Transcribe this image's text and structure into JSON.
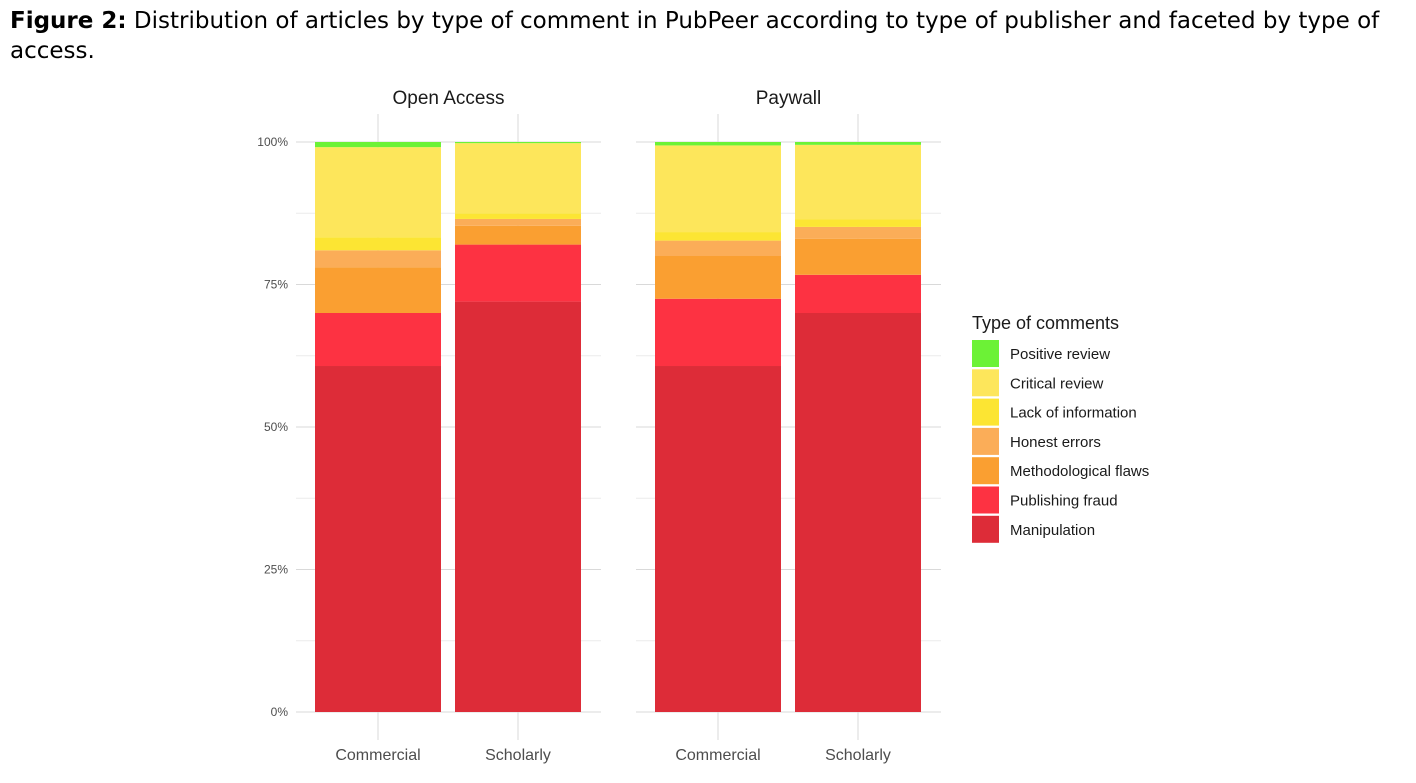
{
  "caption": {
    "label": "Figure 2:",
    "text": "Distribution of articles by type of comment in PubPeer according to type of publisher and faceted by type of access."
  },
  "chart_data": {
    "type": "bar",
    "stacked": true,
    "normalized": true,
    "facets": [
      {
        "title": "Open Access",
        "categories": [
          "Commercial",
          "Scholarly"
        ],
        "series": [
          {
            "name": "Manipulation",
            "values": [
              60.7,
              72.0
            ]
          },
          {
            "name": "Publishing fraud",
            "values": [
              9.3,
              10.0
            ]
          },
          {
            "name": "Methodological flaws",
            "values": [
              8.0,
              3.3
            ]
          },
          {
            "name": "Honest errors",
            "values": [
              3.0,
              1.2
            ]
          },
          {
            "name": "Lack of information",
            "values": [
              2.3,
              1.0
            ]
          },
          {
            "name": "Critical review",
            "values": [
              15.8,
              12.3
            ]
          },
          {
            "name": "Positive review",
            "values": [
              0.9,
              0.2
            ]
          }
        ]
      },
      {
        "title": "Paywall",
        "categories": [
          "Commercial",
          "Scholarly"
        ],
        "series": [
          {
            "name": "Manipulation",
            "values": [
              60.7,
              70.0
            ]
          },
          {
            "name": "Publishing fraud",
            "values": [
              11.8,
              6.7
            ]
          },
          {
            "name": "Methodological flaws",
            "values": [
              7.5,
              6.3
            ]
          },
          {
            "name": "Honest errors",
            "values": [
              2.7,
              2.1
            ]
          },
          {
            "name": "Lack of information",
            "values": [
              1.5,
              1.3
            ]
          },
          {
            "name": "Critical review",
            "values": [
              15.2,
              13.1
            ]
          },
          {
            "name": "Positive review",
            "values": [
              0.6,
              0.5
            ]
          }
        ]
      }
    ],
    "y_ticks": [
      "0%",
      "25%",
      "50%",
      "75%",
      "100%"
    ],
    "ylim": [
      0,
      100
    ],
    "legend": {
      "title": "Type of comments",
      "position": "right",
      "entries": [
        "Positive review",
        "Critical review",
        "Lack of information",
        "Honest errors",
        "Methodological flaws",
        "Publishing fraud",
        "Manipulation"
      ]
    },
    "colors": {
      "Positive review": "#6cf236",
      "Critical review": "#fde65b",
      "Lack of information": "#fce533",
      "Honest errors": "#fbad58",
      "Methodological flaws": "#fa9f31",
      "Publishing fraud": "#fd3242",
      "Manipulation": "#dd2c38"
    },
    "grid": true
  }
}
